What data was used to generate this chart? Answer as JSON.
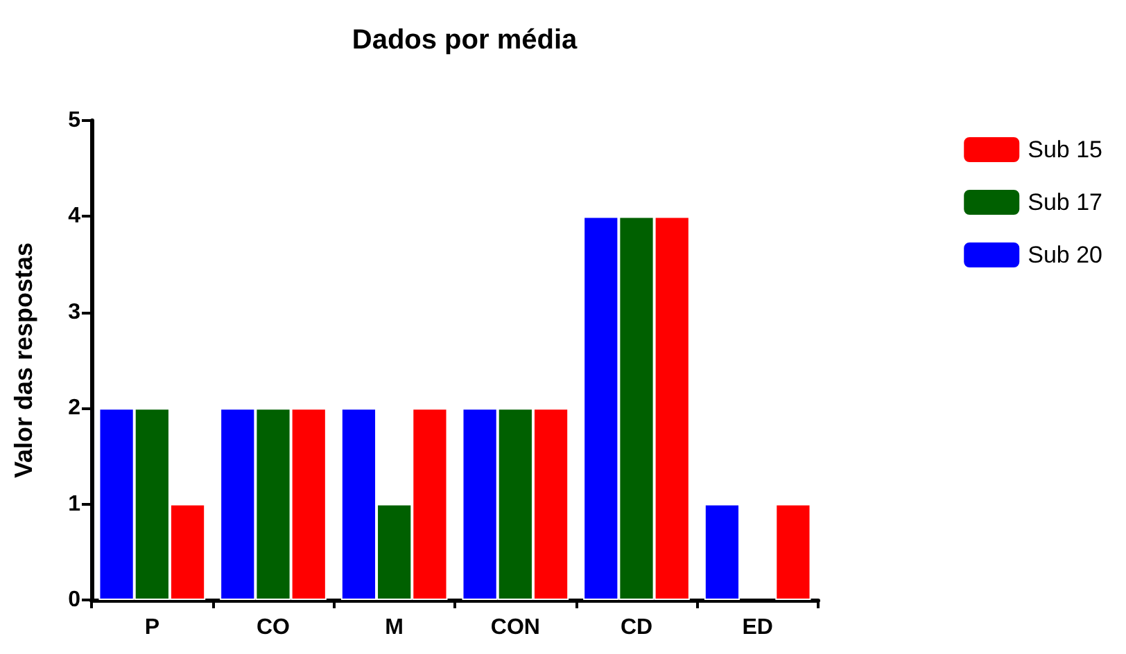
{
  "chart_data": {
    "type": "bar",
    "title": "Dados por média",
    "ylabel": "Valor das respostas",
    "categories": [
      "P",
      "CO",
      "M",
      "CON",
      "CD",
      "ED"
    ],
    "series": [
      {
        "name": "Sub 20",
        "color": "#0000ff",
        "values": [
          2,
          2,
          2,
          2,
          4,
          1
        ]
      },
      {
        "name": "Sub 17",
        "color": "#006000",
        "values": [
          2,
          2,
          1,
          2,
          4,
          null
        ]
      },
      {
        "name": "Sub 15",
        "color": "#ff0000",
        "values": [
          1,
          2,
          2,
          2,
          4,
          1
        ]
      }
    ],
    "ylim": [
      0,
      5
    ],
    "yticks": [
      0,
      1,
      2,
      3,
      4,
      5
    ],
    "grid": false,
    "legend": "top right"
  }
}
